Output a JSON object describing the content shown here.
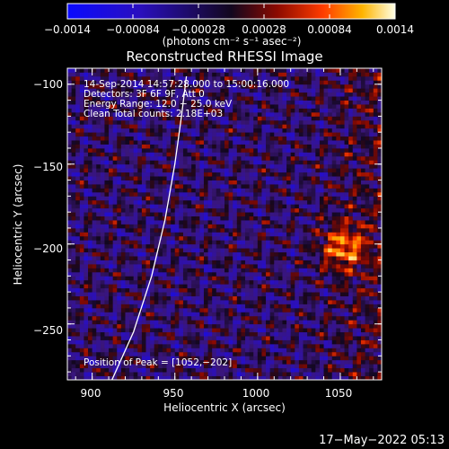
{
  "chart_data": {
    "type": "heatmap",
    "title": "Reconstructed RHESSI Image",
    "xlabel": "Heliocentric X (arcsec)",
    "ylabel": "Heliocentric Y (arcsec)",
    "xlim": [
      885,
      1075
    ],
    "ylim": [
      -285,
      -90
    ],
    "x_ticks": [
      "900",
      "950",
      "1000",
      "1050"
    ],
    "x_tick_values": [
      900,
      950,
      1000,
      1050
    ],
    "y_ticks": [
      "−100",
      "−150",
      "−200",
      "−250"
    ],
    "y_tick_values": [
      -100,
      -150,
      -200,
      -250
    ],
    "colorbar": {
      "min": -0.0014,
      "max": 0.0014,
      "ticks": [
        "−0.0014",
        "−0.00084",
        "−0.00028",
        "0.00028",
        "0.00084",
        "0.0014"
      ],
      "tick_values": [
        -0.0014,
        -0.00084,
        -0.00028,
        0.00028,
        0.00084,
        0.0014
      ],
      "units": "(photons cm⁻² s⁻¹ asec⁻²)"
    },
    "info_lines": [
      "14-Sep-2014 14:57:28.000 to 15:00:16.000",
      "Detectors: 3F 6F 9F, Att 0",
      "Energy Range: 12.0 − 25.0 keV",
      "Clean    Total counts: 2.18E+03"
    ],
    "peak_label": "Position of Peak = [1052,−202]",
    "peak": [
      1052,
      -202
    ],
    "limb_points": [
      [
        912,
        -285
      ],
      [
        925,
        -255
      ],
      [
        936,
        -220
      ],
      [
        944,
        -185
      ],
      [
        950,
        -150
      ],
      [
        954,
        -120
      ],
      [
        957,
        -95
      ]
    ]
  },
  "timestamp": "17−May−2022 05:13"
}
